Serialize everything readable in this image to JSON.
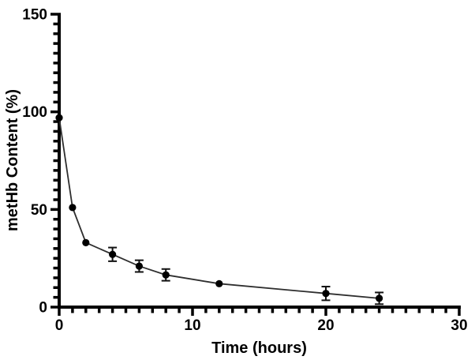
{
  "chart_data": {
    "type": "line",
    "title": "",
    "xlabel": "Time (hours)",
    "ylabel": "metHb Content (%)",
    "x": [
      0,
      1,
      2,
      4,
      6,
      8,
      12,
      20,
      24
    ],
    "series": [
      {
        "name": "metHb content",
        "values": [
          97,
          51,
          33,
          27,
          21,
          16.5,
          12,
          7,
          4.5
        ],
        "errors": [
          0,
          0,
          0,
          3.5,
          3,
          3,
          0,
          3.5,
          3
        ]
      }
    ],
    "xlim": [
      0,
      30
    ],
    "ylim": [
      0,
      150
    ],
    "x_major_ticks": [
      0,
      10,
      20,
      30
    ],
    "x_minor_step": 1,
    "y_major_ticks": [
      0,
      50,
      100,
      150
    ],
    "y_minor_step": 5,
    "grid": false,
    "legend": false,
    "marker": "filled-circle",
    "error_bars": "vertical-with-caps",
    "colors": {
      "axis": "#000000",
      "line": "#2e2e2e",
      "marker": "#000000",
      "error_bar": "#111111",
      "text": "#000000",
      "background": "#ffffff"
    }
  }
}
